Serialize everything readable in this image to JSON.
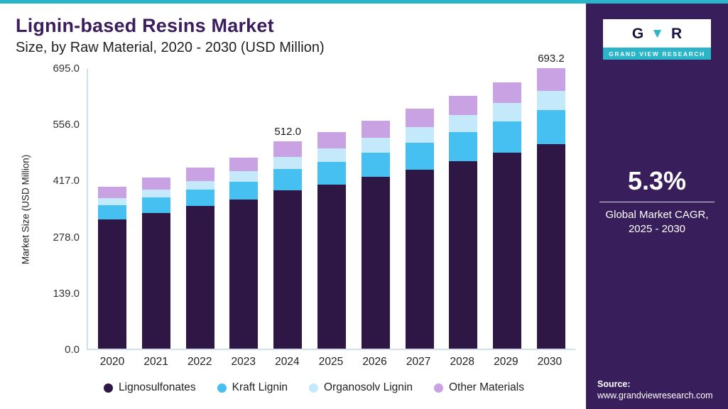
{
  "colors": {
    "accent_teal": "#2ab5c9",
    "sidebar_purple": "#381f5c",
    "title_purple": "#3b1d5e",
    "axis_line": "#cfe0ec"
  },
  "header": {
    "title": "Lignin-based Resins Market",
    "subtitle": "Size, by Raw Material, 2020 - 2030 (USD Million)"
  },
  "chart_data": {
    "type": "bar",
    "stacked": true,
    "title": "Lignin-based Resins Market Size, by Raw Material, 2020 - 2030 (USD Million)",
    "xlabel": "",
    "ylabel": "Market Size (USD Million)",
    "ylim": [
      0,
      695
    ],
    "yticks": [
      0,
      139,
      278,
      417,
      556,
      695
    ],
    "grid": false,
    "legend_position": "bottom",
    "categories": [
      "2020",
      "2021",
      "2022",
      "2023",
      "2024",
      "2025",
      "2026",
      "2027",
      "2028",
      "2029",
      "2030"
    ],
    "series": [
      {
        "name": "Lignosulfonates",
        "color": "#2e1745",
        "values": [
          320,
          336,
          352,
          368,
          392,
          406,
          424,
          443,
          463,
          484,
          506
        ]
      },
      {
        "name": "Kraft Lignin",
        "color": "#45c0f0",
        "values": [
          34,
          37,
          41,
          45,
          52,
          56,
          61,
          66,
          72,
          78,
          84
        ]
      },
      {
        "name": "Organosolv Lignin",
        "color": "#c3e9fb",
        "values": [
          18,
          20,
          22,
          25,
          30,
          33,
          36,
          39,
          42,
          45,
          48
        ]
      },
      {
        "name": "Other Materials",
        "color": "#c9a2e3",
        "values": [
          28,
          30,
          32,
          34,
          38,
          40.5,
          42.9,
          45.8,
          48.2,
          51.4,
          55.2
        ]
      }
    ],
    "totals": [
      400,
      423,
      447,
      472,
      512,
      535.5,
      563.9,
      593.8,
      625.2,
      658.4,
      693.2
    ],
    "bar_labels": {
      "2024": "512.0",
      "2030": "693.2"
    }
  },
  "sidebar": {
    "logo": {
      "glyph_g": "G",
      "glyph_v": "▼",
      "glyph_r": "R",
      "text": "GRAND VIEW RESEARCH"
    },
    "cagr": {
      "value": "5.3%",
      "label_line1": "Global Market CAGR,",
      "label_line2": "2025 - 2030"
    },
    "source": {
      "label": "Source:",
      "url": "www.grandviewresearch.com"
    }
  }
}
